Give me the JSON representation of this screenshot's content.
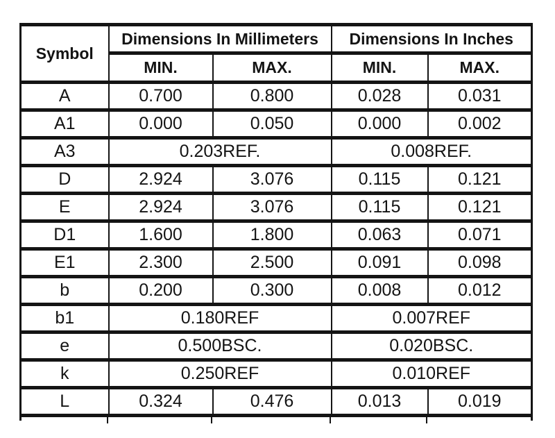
{
  "table": {
    "headers": {
      "symbol": "Symbol",
      "mm_group": "Dimensions In Millimeters",
      "in_group": "Dimensions In Inches",
      "mm_min": "MIN.",
      "mm_max": "MAX.",
      "in_min": "MIN.",
      "in_max": "MAX."
    },
    "rows": [
      {
        "symbol": "A",
        "mm_min": "0.700",
        "mm_max": "0.800",
        "in_min": "0.028",
        "in_max": "0.031"
      },
      {
        "symbol": "A1",
        "mm_min": "0.000",
        "mm_max": "0.050",
        "in_min": "0.000",
        "in_max": "0.002"
      },
      {
        "symbol": "A3",
        "mm_span": "0.203REF.",
        "in_span": "0.008REF."
      },
      {
        "symbol": "D",
        "mm_min": "2.924",
        "mm_max": "3.076",
        "in_min": "0.115",
        "in_max": "0.121"
      },
      {
        "symbol": "E",
        "mm_min": "2.924",
        "mm_max": "3.076",
        "in_min": "0.115",
        "in_max": "0.121"
      },
      {
        "symbol": "D1",
        "mm_min": "1.600",
        "mm_max": "1.800",
        "in_min": "0.063",
        "in_max": "0.071"
      },
      {
        "symbol": "E1",
        "mm_min": "2.300",
        "mm_max": "2.500",
        "in_min": "0.091",
        "in_max": "0.098"
      },
      {
        "symbol": "b",
        "mm_min": "0.200",
        "mm_max": "0.300",
        "in_min": "0.008",
        "in_max": "0.012"
      },
      {
        "symbol": "b1",
        "mm_span": "0.180REF",
        "in_span": "0.007REF"
      },
      {
        "symbol": "e",
        "mm_span": "0.500BSC.",
        "in_span": "0.020BSC."
      },
      {
        "symbol": "k",
        "mm_span": "0.250REF",
        "in_span": "0.010REF"
      },
      {
        "symbol": "L",
        "mm_min": "0.324",
        "mm_max": "0.476",
        "in_min": "0.013",
        "in_max": "0.019"
      }
    ],
    "colors": {
      "ink": "#141414",
      "background": "#ffffff"
    }
  }
}
